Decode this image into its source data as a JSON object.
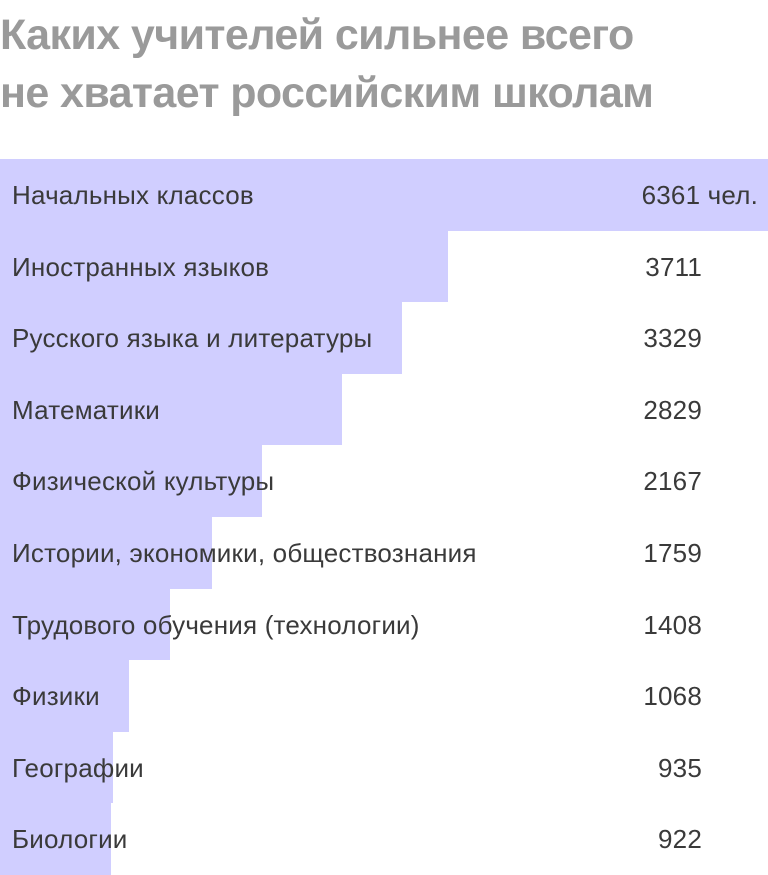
{
  "title_line1": "Каких учителей сильнее всего",
  "title_line2": "не хватает российским школам",
  "colors": {
    "bar": "#d0ceff",
    "title": "#9a9a9a",
    "text": "#3a3a3a"
  },
  "chart_data": {
    "type": "bar",
    "orientation": "horizontal",
    "unit": "чел.",
    "categories": [
      "Начальных классов",
      "Иностранных языков",
      "Русского языка и литературы",
      "Математики",
      "Физической культуры",
      "Истории, экономики, обществознания",
      "Трудового обучения (технологии)",
      "Физики",
      "Географии",
      "Биологии"
    ],
    "values": [
      6361,
      3711,
      3329,
      2829,
      2167,
      1759,
      1408,
      1068,
      935,
      922
    ],
    "value_labels": [
      "6361 чел.",
      "3711",
      "3329",
      "2829",
      "2167",
      "1759",
      "1408",
      "1068",
      "935",
      "922"
    ]
  }
}
